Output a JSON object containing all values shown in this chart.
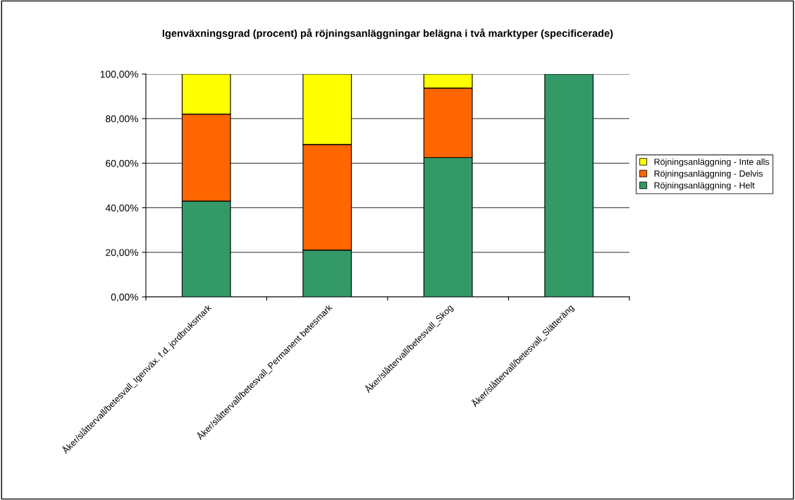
{
  "chart_data": {
    "type": "bar",
    "title": "Igenväxningsgrad (procent) på röjningsanläggningar belägna i två marktyper (specificerade)",
    "categories": [
      "Åker/slåttervall/betesvall_Igenväx. f.d. jordbruksmark",
      "Åker/slåttervall/betesvall_Permanent betesmark",
      "Åker/slåttervall/betesvall_Skog",
      "Åker/slåttervall/betesvall_Slätteräng"
    ],
    "stacked": true,
    "series": [
      {
        "name": "Röjningsanläggning - Helt",
        "color": "#339966",
        "values": [
          43,
          21,
          62.5,
          100
        ]
      },
      {
        "name": "Röjningsanläggning - Delvis",
        "color": "#ff6600",
        "values": [
          39,
          47.4,
          31.2,
          null
        ]
      },
      {
        "name": "Röjningsanläggning - Inte alls",
        "color": "#ffff00",
        "values": [
          18,
          31.6,
          6.3,
          null
        ]
      }
    ],
    "ylim": [
      0,
      100
    ],
    "yticks": [
      {
        "value": 0,
        "label": "0,00%"
      },
      {
        "value": 20,
        "label": "20,00%"
      },
      {
        "value": 40,
        "label": "40,00%"
      },
      {
        "value": 60,
        "label": "60,00%"
      },
      {
        "value": 80,
        "label": "80,00%"
      },
      {
        "value": 100,
        "label": "100,00%"
      }
    ],
    "grid": "y",
    "legend": "right"
  }
}
